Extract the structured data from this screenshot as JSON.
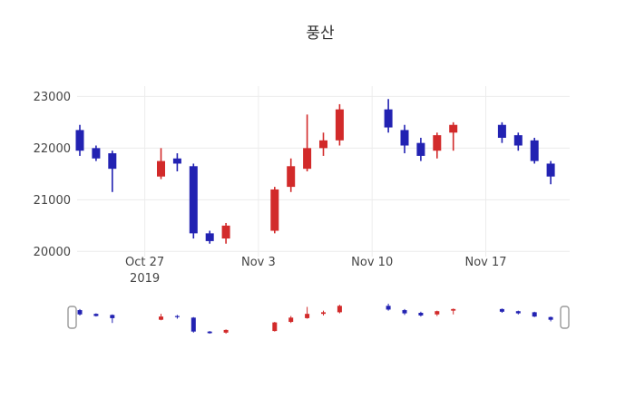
{
  "chart_data": {
    "type": "candlestick",
    "title": "풍산",
    "increasing_color": "#d22a2a",
    "decreasing_color": "#2222b2",
    "grid_color": "#ececec",
    "axis_label_color": "#444444",
    "background": "#ffffff",
    "ylim": [
      19900,
      23200
    ],
    "dates": [
      "2019-10-23",
      "2019-10-24",
      "2019-10-25",
      "2019-10-28",
      "2019-10-29",
      "2019-10-30",
      "2019-10-31",
      "2019-11-01",
      "2019-11-04",
      "2019-11-05",
      "2019-11-06",
      "2019-11-07",
      "2019-11-08",
      "2019-11-11",
      "2019-11-12",
      "2019-11-13",
      "2019-11-14",
      "2019-11-15",
      "2019-11-18",
      "2019-11-19",
      "2019-11-20",
      "2019-11-21"
    ],
    "open": [
      22350,
      22000,
      21900,
      21450,
      21800,
      21650,
      20350,
      20250,
      20400,
      21250,
      21600,
      22000,
      22150,
      22750,
      22350,
      22100,
      21950,
      22300,
      22450,
      22250,
      22150,
      21700
    ],
    "high": [
      22450,
      22050,
      21950,
      22000,
      21900,
      21700,
      20400,
      20550,
      21250,
      21800,
      22650,
      22300,
      22850,
      22950,
      22450,
      22200,
      22300,
      22500,
      22500,
      22300,
      22200,
      21750
    ],
    "low": [
      21850,
      21750,
      21150,
      21400,
      21550,
      20250,
      20150,
      20150,
      20350,
      21150,
      21550,
      21850,
      22050,
      22300,
      21900,
      21750,
      21800,
      21950,
      22100,
      21950,
      21700,
      21300
    ],
    "close": [
      21950,
      21800,
      21600,
      21750,
      21700,
      20350,
      20200,
      20500,
      21200,
      21650,
      22000,
      22150,
      22750,
      22400,
      22050,
      21850,
      22250,
      22450,
      22200,
      22050,
      21750,
      21450
    ],
    "y_ticks": [
      {
        "value": 20000,
        "label": "20000"
      },
      {
        "value": 21000,
        "label": "21000"
      },
      {
        "value": 22000,
        "label": "22000"
      },
      {
        "value": 23000,
        "label": "23000"
      }
    ],
    "x_ticks": [
      {
        "date": "2019-10-27",
        "label": "Oct 27",
        "sublabel": "2019"
      },
      {
        "date": "2019-11-03",
        "label": "Nov 3",
        "sublabel": ""
      },
      {
        "date": "2019-11-10",
        "label": "Nov 10",
        "sublabel": ""
      },
      {
        "date": "2019-11-17",
        "label": "Nov 17",
        "sublabel": ""
      }
    ],
    "legend": "off",
    "grid": "on"
  }
}
